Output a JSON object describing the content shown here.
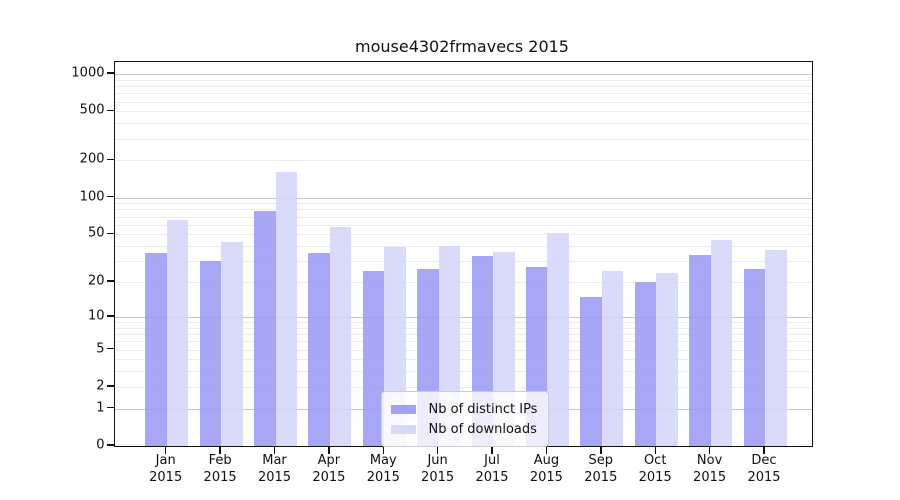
{
  "chart_data": {
    "type": "bar",
    "title": "mouse4302frmavecs 2015",
    "categories": [
      "Jan",
      "Feb",
      "Mar",
      "Apr",
      "May",
      "Jun",
      "Jul",
      "Aug",
      "Sep",
      "Oct",
      "Nov",
      "Dec"
    ],
    "x_tick_year": "2015",
    "series": [
      {
        "name": "Nb of distinct IPs",
        "color": "#9898f3",
        "values": [
          35,
          30,
          78,
          35,
          25,
          26,
          33,
          27,
          15,
          20,
          34,
          26
        ]
      },
      {
        "name": "Nb of downloads",
        "color": "#d4d4fa",
        "values": [
          65,
          43,
          160,
          57,
          39,
          40,
          36,
          51,
          25,
          24,
          45,
          37
        ]
      }
    ],
    "y_ticks": [
      0,
      1,
      2,
      5,
      10,
      20,
      50,
      100,
      200,
      500,
      1000
    ],
    "yscale": "log10(1+y)",
    "ylim": [
      0,
      1250
    ],
    "xlabel": "",
    "ylabel": "",
    "grid": "horizontal, decade lines darker, minor 2-9 per decade lighter",
    "legend_position": "inside-bottom-center",
    "colors": {
      "gridline_major": "#c6c6c6",
      "gridline_minor": "#ededed",
      "axis_frame": "#111111",
      "background": "#ffffff"
    }
  }
}
